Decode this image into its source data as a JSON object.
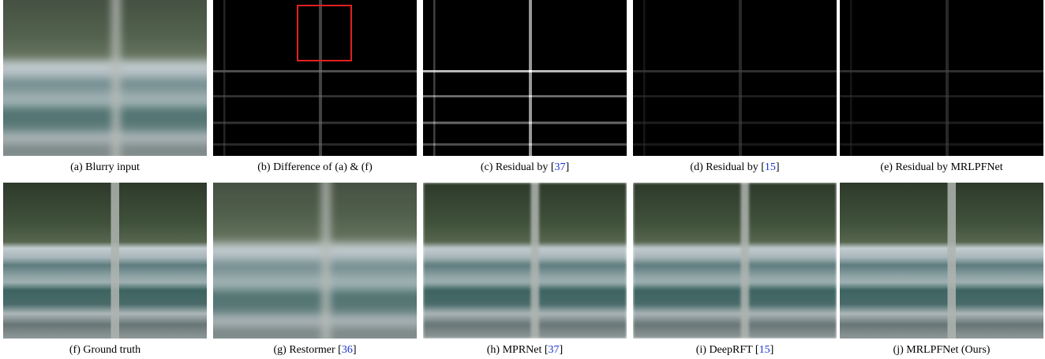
{
  "panels": [
    {
      "caption": {
        "text": "(a) Blurry input"
      }
    },
    {
      "caption": {
        "text": "(b) Difference of (a) & (f)"
      }
    },
    {
      "caption": {
        "text": "(c) Residual by [",
        "ref": "37",
        "tail": "]"
      }
    },
    {
      "caption": {
        "text": "(d) Residual by [",
        "ref": "15",
        "tail": "]"
      }
    },
    {
      "caption": {
        "text": "(e) Residual by MRLPFNet"
      }
    },
    {
      "caption": {
        "text": "(f) Ground truth"
      }
    },
    {
      "caption": {
        "text": "(g) Restormer [",
        "ref": "36",
        "tail": "]"
      }
    },
    {
      "caption": {
        "text": "(h) MPRNet [",
        "ref": "37",
        "tail": "]"
      }
    },
    {
      "caption": {
        "text": "(i) DeepRFT [",
        "ref": "15",
        "tail": "]"
      }
    },
    {
      "caption": {
        "text": "(j) MRLPFNet (Ours)"
      }
    }
  ]
}
